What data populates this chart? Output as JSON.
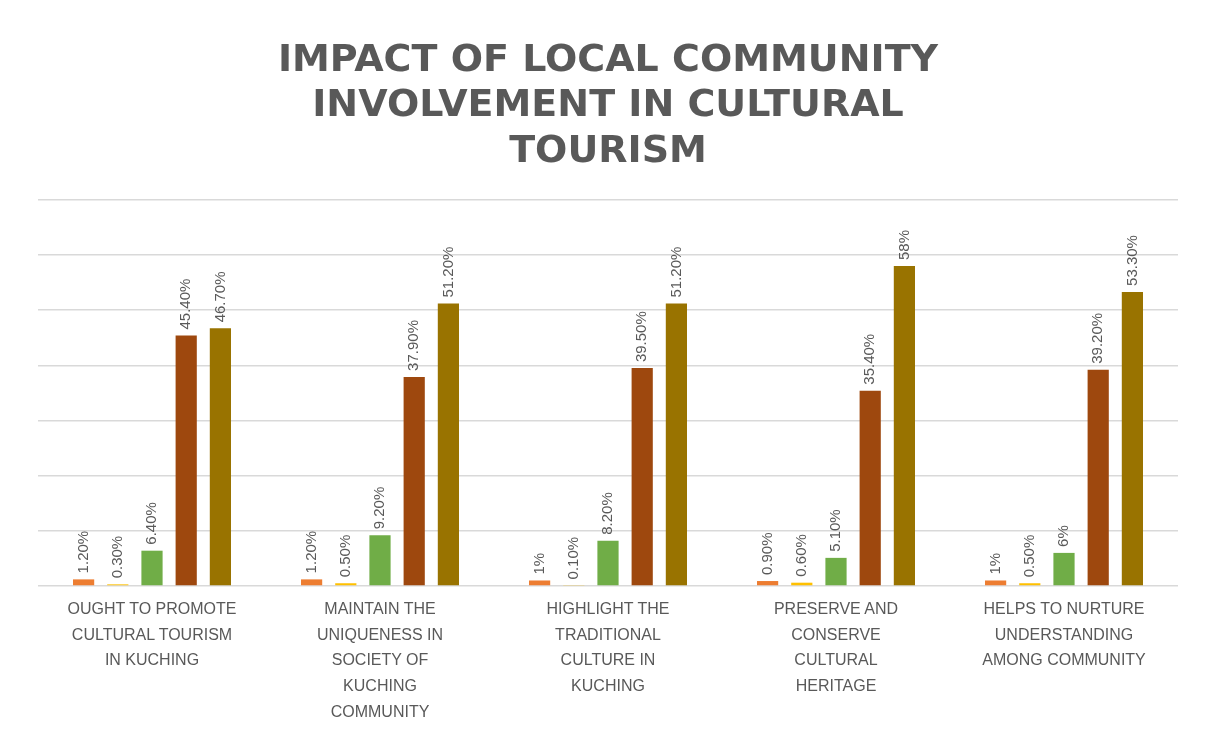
{
  "chart_data": {
    "type": "bar",
    "title": "IMPACT OF LOCAL COMMUNITY INVOLVEMENT IN CULTURAL TOURISM",
    "categories": [
      "OUGHT TO PROMOTE CULTURAL TOURISM IN KUCHING",
      "MAINTAIN THE UNIQUENESS IN SOCIETY OF KUCHING COMMUNITY",
      "HIGHLIGHT THE TRADITIONAL CULTURE IN KUCHING",
      "PRESERVE AND CONSERVE CULTURAL HERITAGE",
      "HELPS TO NURTURE UNDERSTANDING AMONG COMMUNITY"
    ],
    "series": [
      {
        "color": "#ed7d31",
        "values": [
          1.2,
          1.2,
          1,
          0.9,
          1
        ],
        "value_labels": [
          "1.20%",
          "1.20%",
          "1%",
          "0.90%",
          "1%"
        ]
      },
      {
        "color": "#ffc000",
        "values": [
          0.3,
          0.5,
          0.1,
          0.6,
          0.5
        ],
        "value_labels": [
          "0.30%",
          "0.50%",
          "0.10%",
          "0.60%",
          "0.50%"
        ]
      },
      {
        "color": "#70ad47",
        "values": [
          6.4,
          9.2,
          8.2,
          5.1,
          6
        ],
        "value_labels": [
          "6.40%",
          "9.20%",
          "8.20%",
          "5.10%",
          "6%"
        ]
      },
      {
        "color": "#9e480e",
        "values": [
          45.4,
          37.9,
          39.5,
          35.4,
          39.2
        ],
        "value_labels": [
          "45.40%",
          "37.90%",
          "39.50%",
          "35.40%",
          "39.20%"
        ]
      },
      {
        "color": "#997300",
        "values": [
          46.7,
          51.2,
          51.2,
          58,
          53.3
        ],
        "value_labels": [
          "46.70%",
          "51.20%",
          "51.20%",
          "58%",
          "53.30%"
        ]
      }
    ],
    "ylim": [
      0,
      70
    ],
    "yticks": [
      {
        "value": 0,
        "label": null
      },
      {
        "value": 10,
        "label": null
      },
      {
        "value": 20,
        "label": null
      },
      {
        "value": 30,
        "label": null
      },
      {
        "value": 40,
        "label": null
      },
      {
        "value": 50,
        "label": null
      },
      {
        "value": 60,
        "label": null
      },
      {
        "value": 70,
        "label": null
      }
    ],
    "grid": "y",
    "tick_labels": "x",
    "legend": false
  }
}
